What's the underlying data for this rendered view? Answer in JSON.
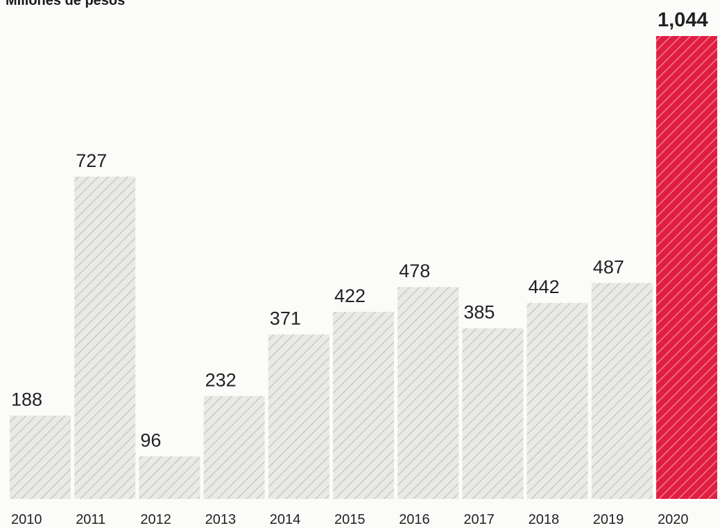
{
  "chart_data": {
    "type": "bar",
    "ylabel": "Millones de pesos",
    "categories": [
      "2010",
      "2011",
      "2012",
      "2013",
      "2014",
      "2015",
      "2016",
      "2017",
      "2018",
      "2019",
      "2020"
    ],
    "values": [
      188,
      727,
      96,
      232,
      371,
      422,
      478,
      385,
      442,
      487,
      1044
    ],
    "value_labels": [
      "188",
      "727",
      "96",
      "232",
      "371",
      "422",
      "478",
      "385",
      "442",
      "487",
      "1,044"
    ],
    "highlight_index": 10,
    "ylim": [
      0,
      1100
    ],
    "grid": false,
    "legend": "none",
    "colors": {
      "bar_fill": "#e9e9e5",
      "bar_hatch": "#c9c9c4",
      "highlight_fill": "#e01e42",
      "highlight_hatch": "#f27a90",
      "text": "#222222",
      "background": "#fbfbf9"
    }
  }
}
